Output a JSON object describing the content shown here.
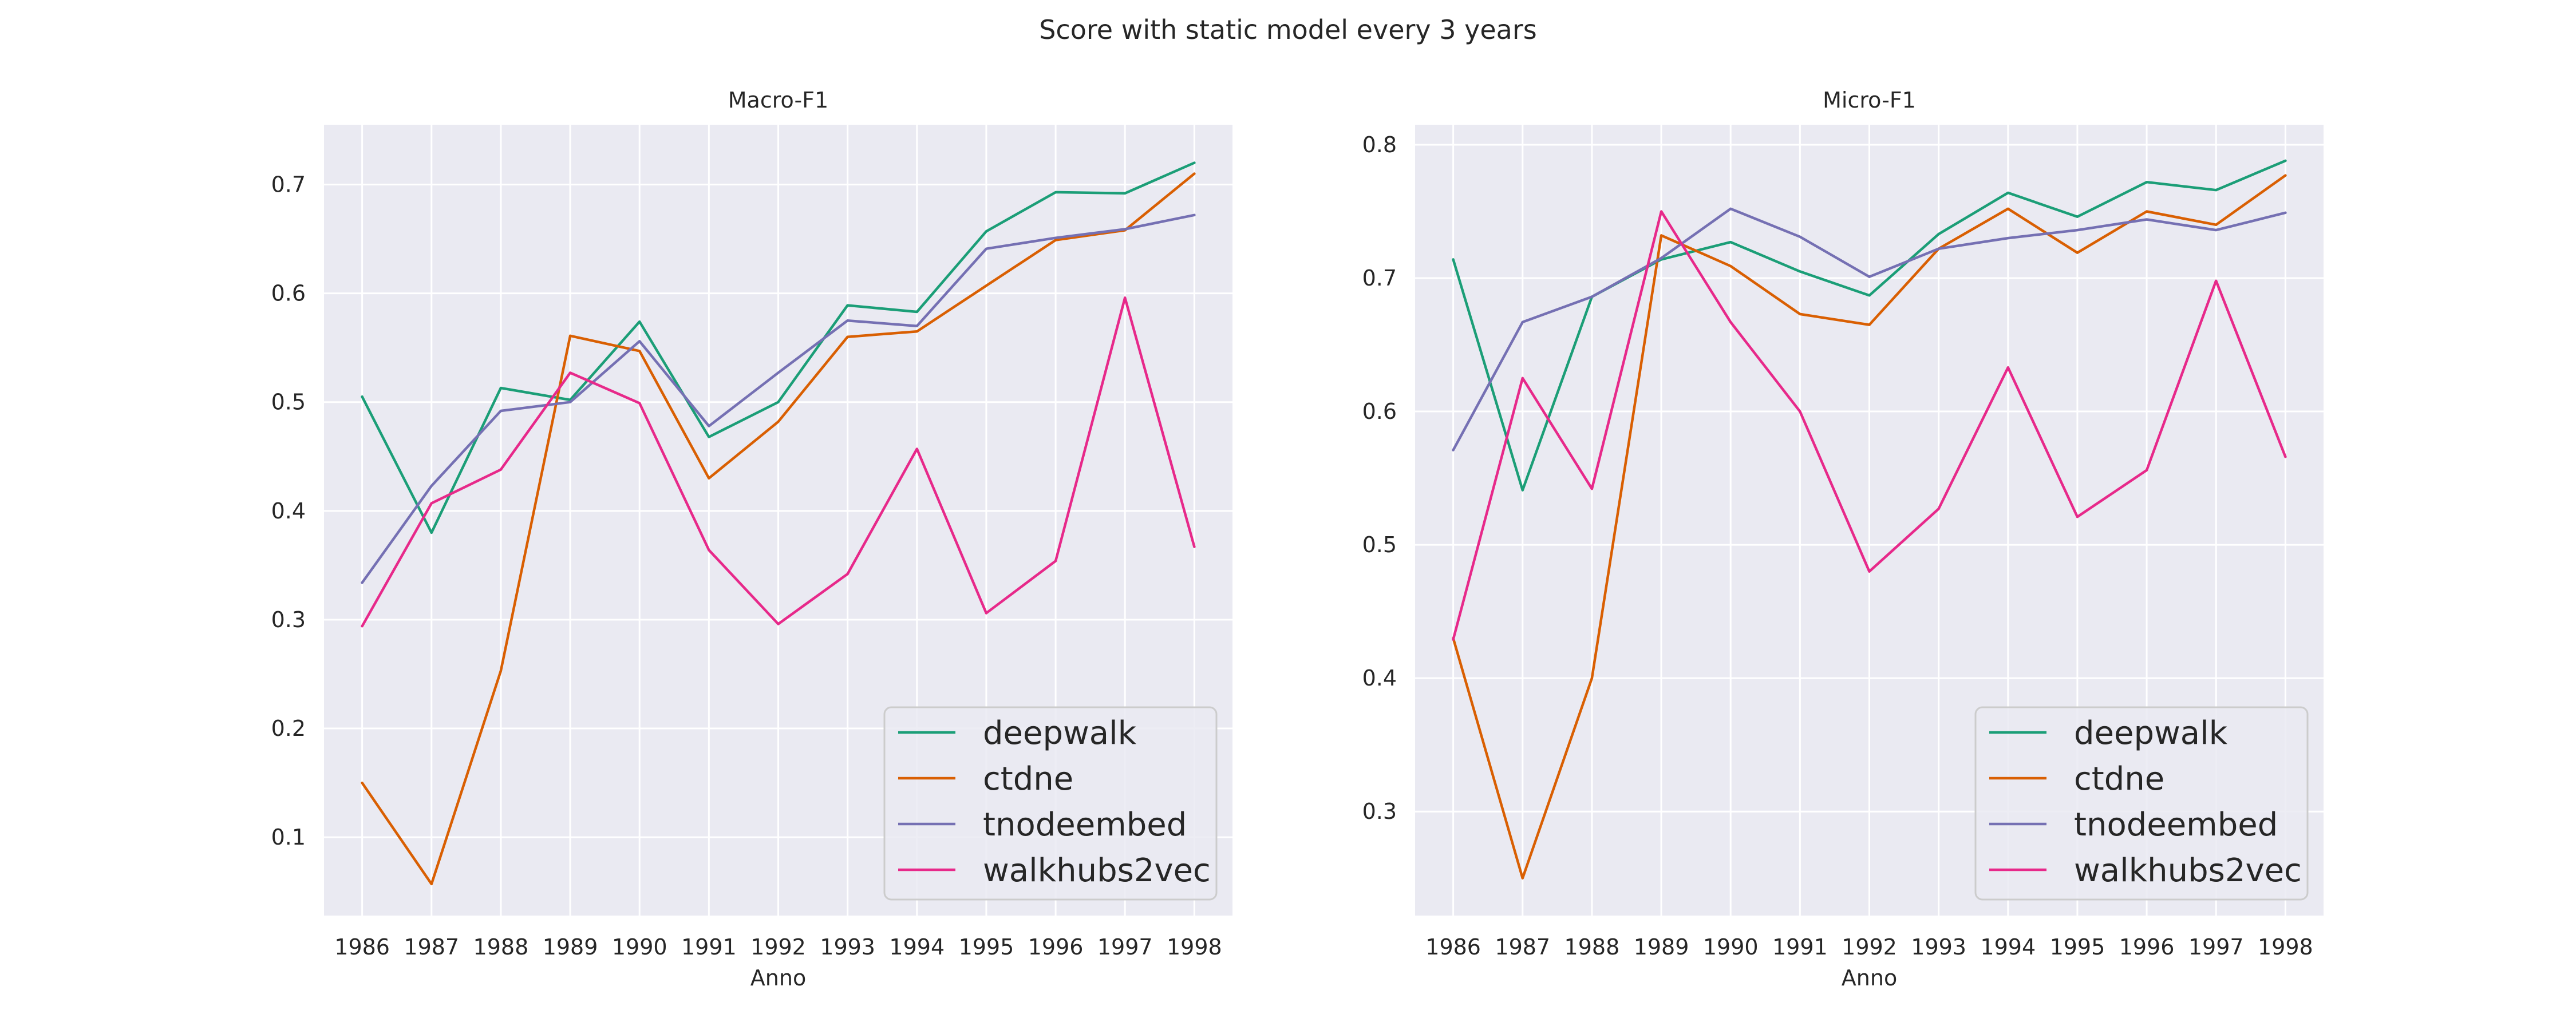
{
  "figure": {
    "suptitle": "Score with static model every 3 years"
  },
  "chart_data": [
    {
      "type": "line",
      "title": "Macro-F1",
      "xlabel": "Anno",
      "ylabel": "",
      "x": [
        1986,
        1987,
        1988,
        1989,
        1990,
        1991,
        1992,
        1993,
        1994,
        1995,
        1996,
        1997,
        1998
      ],
      "xlim": [
        1985.45,
        1998.55
      ],
      "ylim": [
        0.028,
        0.755
      ],
      "yticks": [
        0.1,
        0.2,
        0.3,
        0.4,
        0.5,
        0.6,
        0.7
      ],
      "ytick_labels": [
        "0.1",
        "0.2",
        "0.3",
        "0.4",
        "0.5",
        "0.6",
        "0.7"
      ],
      "grid": true,
      "legend_position": "lower-right",
      "series": [
        {
          "name": "deepwalk",
          "color": "#1b9e77",
          "values": [
            0.505,
            0.38,
            0.513,
            0.502,
            0.574,
            0.468,
            0.5,
            0.589,
            0.583,
            0.657,
            0.693,
            0.692,
            0.72
          ]
        },
        {
          "name": "ctdne",
          "color": "#d95f02",
          "values": [
            0.15,
            0.057,
            0.253,
            0.561,
            0.547,
            0.43,
            0.482,
            0.56,
            0.565,
            0.607,
            0.649,
            0.658,
            0.71
          ]
        },
        {
          "name": "tnodeembed",
          "color": "#7570b3",
          "values": [
            0.334,
            0.423,
            0.492,
            0.5,
            0.556,
            0.478,
            0.527,
            0.575,
            0.57,
            0.641,
            0.651,
            0.659,
            0.672
          ]
        },
        {
          "name": "walkhubs2vec",
          "color": "#e7298a",
          "values": [
            0.294,
            0.407,
            0.438,
            0.527,
            0.499,
            0.364,
            0.296,
            0.342,
            0.457,
            0.306,
            0.354,
            0.596,
            0.367
          ]
        }
      ]
    },
    {
      "type": "line",
      "title": "Micro-F1",
      "xlabel": "Anno",
      "ylabel": "",
      "x": [
        1986,
        1987,
        1988,
        1989,
        1990,
        1991,
        1992,
        1993,
        1994,
        1995,
        1996,
        1997,
        1998
      ],
      "xlim": [
        1985.45,
        1998.55
      ],
      "ylim": [
        0.222,
        0.815
      ],
      "yticks": [
        0.3,
        0.4,
        0.5,
        0.6,
        0.7,
        0.8
      ],
      "ytick_labels": [
        "0.3",
        "0.4",
        "0.5",
        "0.6",
        "0.7",
        "0.8"
      ],
      "grid": true,
      "legend_position": "lower-right",
      "series": [
        {
          "name": "deepwalk",
          "color": "#1b9e77",
          "values": [
            0.714,
            0.541,
            0.686,
            0.714,
            0.727,
            0.705,
            0.687,
            0.733,
            0.764,
            0.746,
            0.772,
            0.766,
            0.788
          ]
        },
        {
          "name": "ctdne",
          "color": "#d95f02",
          "values": [
            0.43,
            0.25,
            0.4,
            0.732,
            0.709,
            0.673,
            0.665,
            0.722,
            0.752,
            0.719,
            0.75,
            0.74,
            0.777
          ]
        },
        {
          "name": "tnodeembed",
          "color": "#7570b3",
          "values": [
            0.571,
            0.667,
            0.686,
            0.715,
            0.752,
            0.731,
            0.701,
            0.722,
            0.73,
            0.736,
            0.744,
            0.736,
            0.749
          ]
        },
        {
          "name": "walkhubs2vec",
          "color": "#e7298a",
          "values": [
            0.429,
            0.625,
            0.542,
            0.75,
            0.667,
            0.6,
            0.48,
            0.527,
            0.633,
            0.521,
            0.556,
            0.698,
            0.566
          ]
        }
      ]
    }
  ]
}
